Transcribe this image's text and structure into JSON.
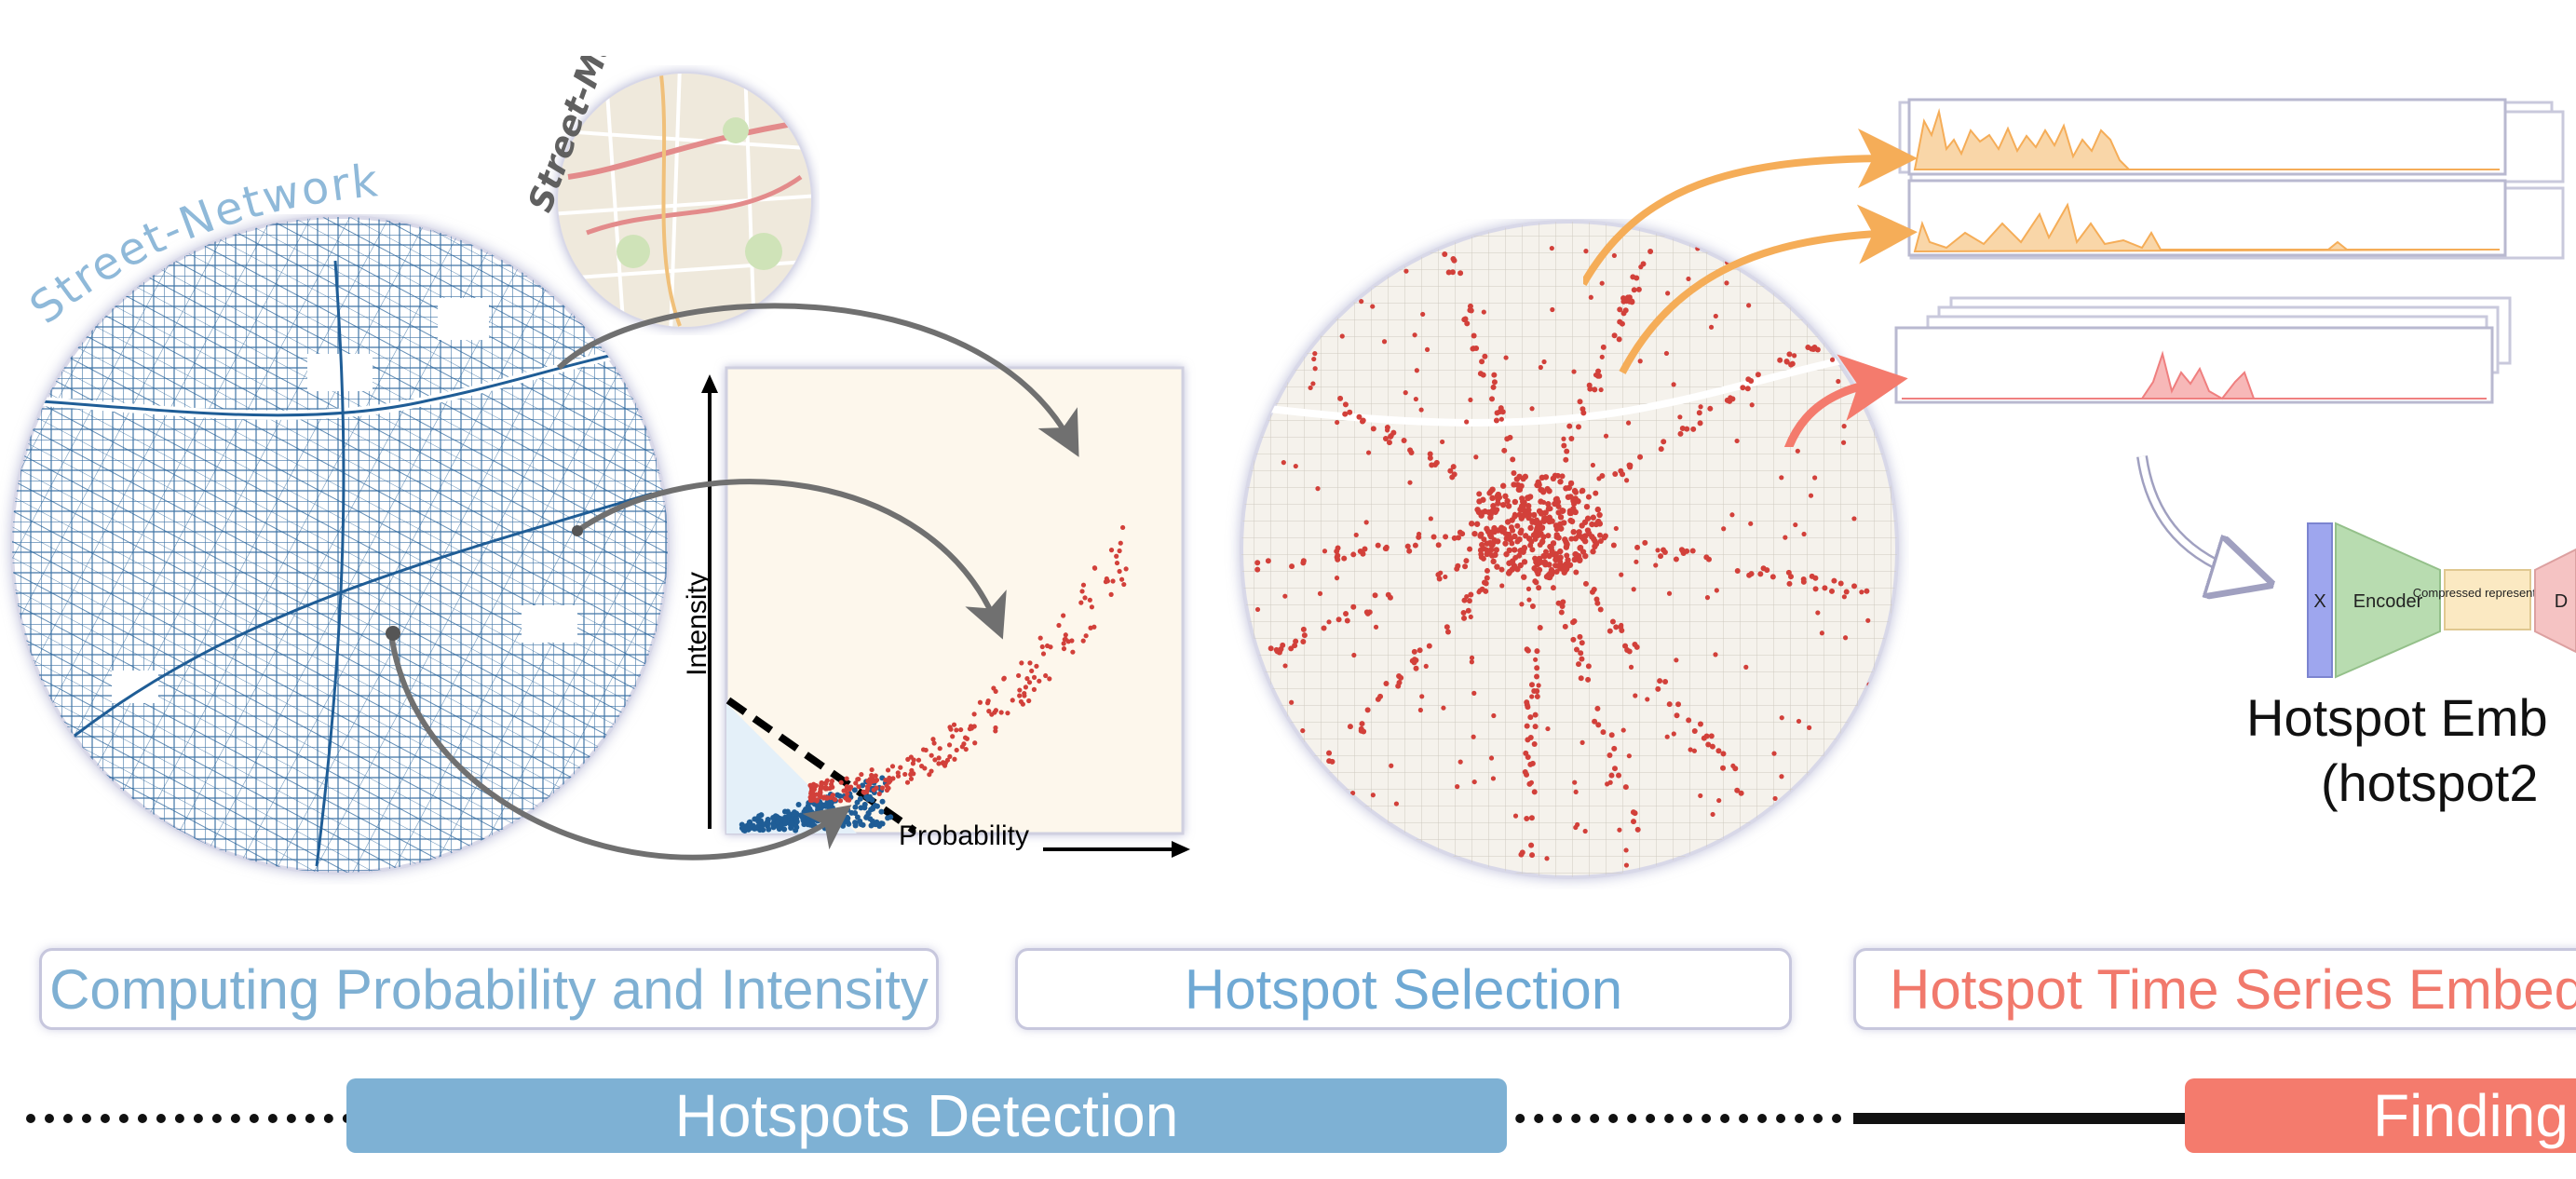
{
  "labels": {
    "street_network": "Street-Network",
    "street_map": "Street-Map",
    "intensity_axis": "Intensity",
    "probability_axis": "Probability",
    "x_block": "X",
    "encoder": "Encoder",
    "compressed": "Compressed representation",
    "decoder_partial": "D",
    "embedding_line1": "Hotspot Emb",
    "embedding_line2": "(hotspot2"
  },
  "stages": [
    {
      "label": "Computing Probability and Intensity",
      "color": "#7fb0d3"
    },
    {
      "label": "Hotspot Selection",
      "color": "#6fa9d4"
    },
    {
      "label": "Hotspot Time Series Embed",
      "color": "#f1796c"
    }
  ],
  "phases": [
    {
      "label": "Hotspots Detection",
      "color": "#7eb1d4"
    },
    {
      "label": "Finding",
      "color": "#f47b6d"
    }
  ],
  "colors": {
    "network_blue": "#1f5d96",
    "hotspot_red": "#d2403a",
    "series_orange": "#f5ad58",
    "series_red": "#ef7f7f",
    "arrow_gray": "#707070",
    "encoder_green": "#b8dcb0",
    "x_block_purple": "#9ea6ee",
    "compressed_yellow": "#fbe9c2",
    "decoder_pink": "#f5c3c3"
  }
}
